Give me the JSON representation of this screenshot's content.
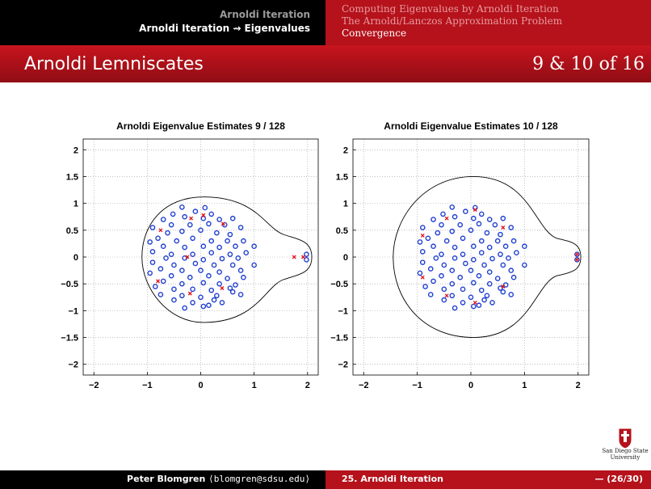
{
  "header": {
    "section": "Arnoldi Iteration",
    "subsection": "Arnoldi Iteration ⇝ Eigenvalues",
    "toc": [
      {
        "label": "Computing Eigenvalues by Arnoldi Iteration",
        "current": false
      },
      {
        "label": "The Arnoldi/Lanczos Approximation Problem",
        "current": false
      },
      {
        "label": "Convergence",
        "current": true
      }
    ]
  },
  "frame": {
    "title": "Arnoldi Lemniscates",
    "counter": "9 & 10 of 16"
  },
  "footer": {
    "author": "Peter Blomgren",
    "email": "⟨blomgren@sdsu.edu⟩",
    "talk": "25. Arnoldi Iteration",
    "pages": "— (26/30)"
  },
  "logo": {
    "line1": "San Diego State",
    "line2": "University",
    "color": "#b5121b"
  },
  "colors": {
    "eigenvalue_marker": "#1f3fd0",
    "ritz_marker": "#e0101a",
    "lemniscate": "#000000",
    "header_red": "#b5121b"
  },
  "chart_data": [
    {
      "type": "scatter",
      "title": "Arnoldi Eigenvalue Estimates 9 / 128",
      "xlim": [
        -2.2,
        2.2
      ],
      "ylim": [
        -2.2,
        2.2
      ],
      "xticks": [
        "−2",
        "−1",
        "0",
        "1",
        "2"
      ],
      "yticks": [
        "2",
        "1.5",
        "1",
        "0.5",
        "0",
        "−0.5",
        "−1",
        "−1.5",
        "−2"
      ],
      "grid": true,
      "series": [
        {
          "marker": "o",
          "points": [
            [
              -0.35,
              0.93
            ],
            [
              -0.1,
              0.85
            ],
            [
              0.08,
              0.92
            ],
            [
              -0.52,
              0.8
            ],
            [
              0.2,
              0.8
            ],
            [
              -0.7,
              0.7
            ],
            [
              -0.3,
              0.75
            ],
            [
              0.05,
              0.72
            ],
            [
              0.35,
              0.7
            ],
            [
              0.6,
              0.72
            ],
            [
              -0.9,
              0.55
            ],
            [
              -0.55,
              0.6
            ],
            [
              -0.2,
              0.6
            ],
            [
              0.15,
              0.62
            ],
            [
              0.45,
              0.6
            ],
            [
              0.75,
              0.55
            ],
            [
              -0.62,
              0.45
            ],
            [
              -0.35,
              0.48
            ],
            [
              0.0,
              0.5
            ],
            [
              0.3,
              0.45
            ],
            [
              0.55,
              0.42
            ],
            [
              -0.8,
              0.35
            ],
            [
              -0.45,
              0.3
            ],
            [
              -0.15,
              0.35
            ],
            [
              0.2,
              0.3
            ],
            [
              0.5,
              0.3
            ],
            [
              0.8,
              0.3
            ],
            [
              -0.95,
              0.28
            ],
            [
              -0.7,
              0.2
            ],
            [
              -0.3,
              0.18
            ],
            [
              0.05,
              0.2
            ],
            [
              0.35,
              0.18
            ],
            [
              0.65,
              0.2
            ],
            [
              1.0,
              0.2
            ],
            [
              -0.9,
              0.1
            ],
            [
              -0.55,
              0.05
            ],
            [
              -0.15,
              0.05
            ],
            [
              0.2,
              0.08
            ],
            [
              0.55,
              0.05
            ],
            [
              0.85,
              0.08
            ],
            [
              -0.65,
              -0.02
            ],
            [
              -0.3,
              -0.02
            ],
            [
              0.05,
              -0.05
            ],
            [
              0.4,
              -0.03
            ],
            [
              0.7,
              -0.02
            ],
            [
              -0.9,
              -0.1
            ],
            [
              -0.5,
              -0.15
            ],
            [
              -0.1,
              -0.12
            ],
            [
              0.25,
              -0.15
            ],
            [
              0.6,
              -0.15
            ],
            [
              1.0,
              -0.15
            ],
            [
              -0.75,
              -0.22
            ],
            [
              -0.35,
              -0.25
            ],
            [
              0.0,
              -0.25
            ],
            [
              0.35,
              -0.28
            ],
            [
              0.75,
              -0.25
            ],
            [
              -0.95,
              -0.3
            ],
            [
              -0.55,
              -0.35
            ],
            [
              -0.2,
              -0.38
            ],
            [
              0.15,
              -0.35
            ],
            [
              0.5,
              -0.4
            ],
            [
              0.8,
              -0.38
            ],
            [
              -0.7,
              -0.45
            ],
            [
              -0.35,
              -0.5
            ],
            [
              0.05,
              -0.48
            ],
            [
              0.35,
              -0.5
            ],
            [
              0.65,
              -0.52
            ],
            [
              -0.85,
              -0.55
            ],
            [
              -0.5,
              -0.6
            ],
            [
              -0.15,
              -0.6
            ],
            [
              0.2,
              -0.62
            ],
            [
              0.55,
              -0.58
            ],
            [
              0.75,
              -0.7
            ],
            [
              -0.75,
              -0.7
            ],
            [
              -0.35,
              -0.72
            ],
            [
              0.0,
              -0.75
            ],
            [
              0.3,
              -0.72
            ],
            [
              0.6,
              -0.65
            ],
            [
              -0.5,
              -0.8
            ],
            [
              -0.15,
              -0.85
            ],
            [
              0.15,
              -0.9
            ],
            [
              0.4,
              -0.85
            ],
            [
              -0.3,
              -0.95
            ],
            [
              0.05,
              -0.92
            ],
            [
              0.25,
              -0.8
            ],
            [
              1.98,
              0.05
            ],
            [
              1.98,
              -0.05
            ]
          ]
        },
        {
          "marker": "x",
          "points": [
            [
              -0.75,
              0.5
            ],
            [
              -0.18,
              0.72
            ],
            [
              0.05,
              0.78
            ],
            [
              0.42,
              0.62
            ],
            [
              1.75,
              0.0
            ],
            [
              1.92,
              0.0
            ],
            [
              -0.8,
              -0.45
            ],
            [
              -0.2,
              -0.68
            ],
            [
              0.4,
              -0.58
            ],
            [
              -0.25,
              0.0
            ]
          ]
        }
      ]
    },
    {
      "type": "scatter",
      "title": "Arnoldi Eigenvalue Estimates 10 / 128",
      "xlim": [
        -2.2,
        2.2
      ],
      "ylim": [
        -2.2,
        2.2
      ],
      "xticks": [
        "−2",
        "−1",
        "0",
        "1",
        "2"
      ],
      "yticks": [
        "2",
        "1.5",
        "1",
        "0.5",
        "0",
        "−0.5",
        "−1",
        "−1.5",
        "−2"
      ],
      "grid": true,
      "series": [
        {
          "marker": "o",
          "points": [
            [
              -0.35,
              0.93
            ],
            [
              -0.1,
              0.85
            ],
            [
              0.08,
              0.92
            ],
            [
              -0.52,
              0.8
            ],
            [
              0.2,
              0.8
            ],
            [
              -0.7,
              0.7
            ],
            [
              -0.3,
              0.75
            ],
            [
              0.05,
              0.72
            ],
            [
              0.35,
              0.7
            ],
            [
              0.6,
              0.72
            ],
            [
              -0.9,
              0.55
            ],
            [
              -0.55,
              0.6
            ],
            [
              -0.2,
              0.6
            ],
            [
              0.15,
              0.62
            ],
            [
              0.45,
              0.6
            ],
            [
              0.75,
              0.55
            ],
            [
              -0.62,
              0.45
            ],
            [
              -0.35,
              0.48
            ],
            [
              0.0,
              0.5
            ],
            [
              0.3,
              0.45
            ],
            [
              0.55,
              0.42
            ],
            [
              -0.8,
              0.35
            ],
            [
              -0.45,
              0.3
            ],
            [
              -0.15,
              0.35
            ],
            [
              0.2,
              0.3
            ],
            [
              0.5,
              0.3
            ],
            [
              0.8,
              0.3
            ],
            [
              -0.95,
              0.28
            ],
            [
              -0.7,
              0.2
            ],
            [
              -0.3,
              0.18
            ],
            [
              0.05,
              0.2
            ],
            [
              0.35,
              0.18
            ],
            [
              0.65,
              0.2
            ],
            [
              1.0,
              0.2
            ],
            [
              -0.9,
              0.1
            ],
            [
              -0.55,
              0.05
            ],
            [
              -0.15,
              0.05
            ],
            [
              0.2,
              0.08
            ],
            [
              0.55,
              0.05
            ],
            [
              0.85,
              0.08
            ],
            [
              -0.65,
              -0.02
            ],
            [
              -0.3,
              -0.02
            ],
            [
              0.05,
              -0.05
            ],
            [
              0.4,
              -0.03
            ],
            [
              0.7,
              -0.02
            ],
            [
              -0.9,
              -0.1
            ],
            [
              -0.5,
              -0.15
            ],
            [
              -0.1,
              -0.12
            ],
            [
              0.25,
              -0.15
            ],
            [
              0.6,
              -0.15
            ],
            [
              1.0,
              -0.15
            ],
            [
              -0.75,
              -0.22
            ],
            [
              -0.35,
              -0.25
            ],
            [
              0.0,
              -0.25
            ],
            [
              0.35,
              -0.28
            ],
            [
              0.75,
              -0.25
            ],
            [
              -0.95,
              -0.3
            ],
            [
              -0.55,
              -0.35
            ],
            [
              -0.2,
              -0.38
            ],
            [
              0.15,
              -0.35
            ],
            [
              0.5,
              -0.4
            ],
            [
              0.8,
              -0.38
            ],
            [
              -0.7,
              -0.45
            ],
            [
              -0.35,
              -0.5
            ],
            [
              0.05,
              -0.48
            ],
            [
              0.35,
              -0.5
            ],
            [
              0.65,
              -0.52
            ],
            [
              -0.85,
              -0.55
            ],
            [
              -0.5,
              -0.6
            ],
            [
              -0.15,
              -0.6
            ],
            [
              0.2,
              -0.62
            ],
            [
              0.55,
              -0.58
            ],
            [
              0.75,
              -0.7
            ],
            [
              -0.75,
              -0.7
            ],
            [
              -0.35,
              -0.72
            ],
            [
              0.0,
              -0.75
            ],
            [
              0.3,
              -0.72
            ],
            [
              0.6,
              -0.65
            ],
            [
              -0.5,
              -0.8
            ],
            [
              -0.15,
              -0.85
            ],
            [
              0.15,
              -0.9
            ],
            [
              0.4,
              -0.85
            ],
            [
              -0.3,
              -0.95
            ],
            [
              0.05,
              -0.92
            ],
            [
              0.25,
              -0.8
            ],
            [
              1.98,
              0.05
            ],
            [
              1.98,
              -0.05
            ]
          ]
        },
        {
          "marker": "x",
          "points": [
            [
              -0.9,
              0.4
            ],
            [
              -0.45,
              0.72
            ],
            [
              0.08,
              0.88
            ],
            [
              0.6,
              0.55
            ],
            [
              1.98,
              0.05
            ],
            [
              1.98,
              -0.05
            ],
            [
              -0.9,
              -0.38
            ],
            [
              -0.45,
              -0.72
            ],
            [
              0.08,
              -0.85
            ],
            [
              0.6,
              -0.55
            ]
          ]
        }
      ]
    }
  ]
}
